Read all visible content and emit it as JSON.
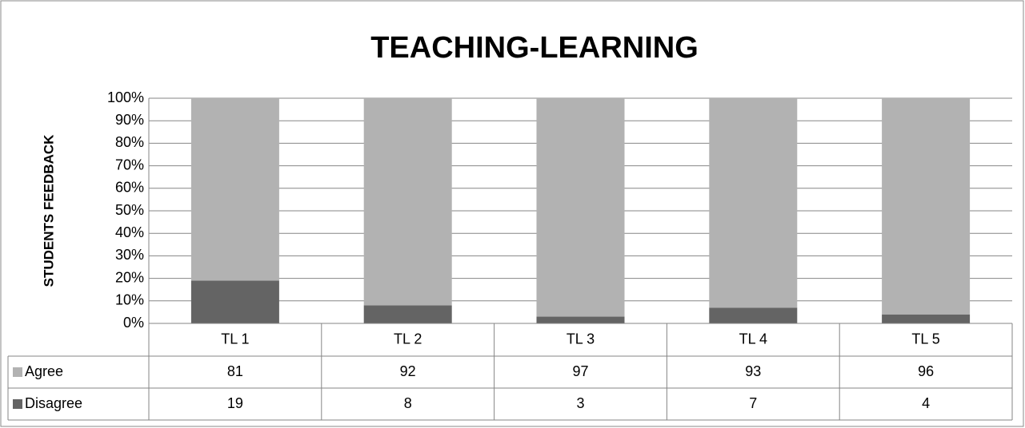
{
  "chart_data": {
    "type": "stacked_bar",
    "title": "TEACHING-LEARNING",
    "y_label": "STUDENTS FEEDBACK",
    "categories": [
      "TL 1",
      "TL 2",
      "TL 3",
      "TL 4",
      "TL 5"
    ],
    "series": [
      {
        "name": "Agree",
        "color": "#b2b2b2",
        "values": [
          81,
          92,
          97,
          93,
          96
        ]
      },
      {
        "name": "Disagree",
        "color": "#646464",
        "values": [
          19,
          8,
          3,
          7,
          4
        ]
      }
    ],
    "ylim": [
      0,
      100
    ],
    "yticks": [
      {
        "value": 0,
        "label": "0%"
      },
      {
        "value": 10,
        "label": "10%"
      },
      {
        "value": 20,
        "label": "20%"
      },
      {
        "value": 30,
        "label": "30%"
      },
      {
        "value": 40,
        "label": "40%"
      },
      {
        "value": 50,
        "label": "50%"
      },
      {
        "value": 60,
        "label": "60%"
      },
      {
        "value": 70,
        "label": "70%"
      },
      {
        "value": 80,
        "label": "80%"
      },
      {
        "value": 90,
        "label": "90%"
      },
      {
        "value": 100,
        "label": "100%"
      }
    ],
    "grid": true,
    "data_table": true
  }
}
